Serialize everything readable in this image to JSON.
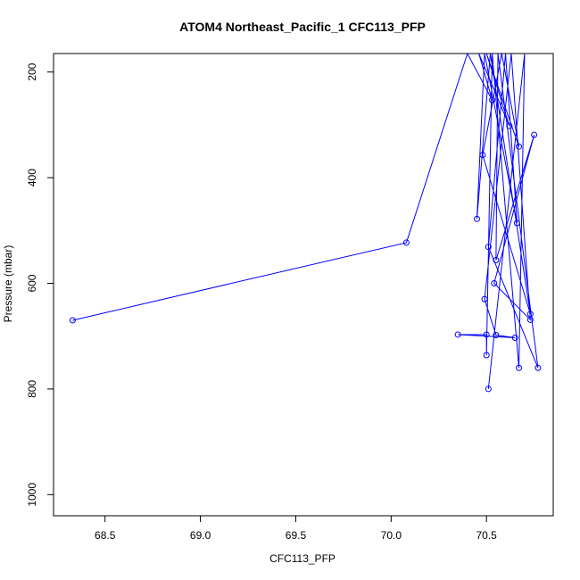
{
  "chart_data": {
    "type": "line",
    "title": "ATOM4 Northeast_Pacific_1 CFC113_PFP",
    "xlabel": "CFC113_PFP",
    "ylabel": "Pressure (mbar)",
    "xlim": [
      68.23,
      70.85
    ],
    "ylim": [
      1040,
      165
    ],
    "y_reversed": true,
    "xticks": [
      "68.5",
      "69.0",
      "69.5",
      "70.0",
      "70.5"
    ],
    "yticks": [
      "200",
      "400",
      "600",
      "800",
      "1000"
    ],
    "grid": false,
    "legend": "none",
    "series": [
      {
        "color": "#0000ff",
        "marker": "open-circle",
        "points": [
          {
            "x": 68.33,
            "y": 670
          },
          {
            "x": 70.08,
            "y": 523
          },
          {
            "x": 70.4,
            "y": 165
          },
          {
            "x": 70.53,
            "y": 253
          },
          {
            "x": 70.46,
            "y": 165
          },
          {
            "x": 70.62,
            "y": 302
          },
          {
            "x": 70.5,
            "y": 165
          },
          {
            "x": 70.67,
            "y": 341
          },
          {
            "x": 70.58,
            "y": 165
          },
          {
            "x": 70.48,
            "y": 357
          },
          {
            "x": 70.73,
            "y": 658
          },
          {
            "x": 70.52,
            "y": 165
          },
          {
            "x": 70.45,
            "y": 478
          },
          {
            "x": 70.49,
            "y": 165
          },
          {
            "x": 70.66,
            "y": 486
          },
          {
            "x": 70.6,
            "y": 165
          },
          {
            "x": 70.51,
            "y": 531
          },
          {
            "x": 70.77,
            "y": 760
          },
          {
            "x": 70.56,
            "y": 165
          },
          {
            "x": 70.55,
            "y": 556
          },
          {
            "x": 70.75,
            "y": 319
          },
          {
            "x": 70.54,
            "y": 600
          },
          {
            "x": 70.73,
            "y": 669
          },
          {
            "x": 70.63,
            "y": 165
          },
          {
            "x": 70.49,
            "y": 630
          },
          {
            "x": 70.55,
            "y": 698
          },
          {
            "x": 70.65,
            "y": 703
          },
          {
            "x": 70.35,
            "y": 697
          },
          {
            "x": 70.5,
            "y": 697
          },
          {
            "x": 70.5,
            "y": 736
          },
          {
            "x": 70.53,
            "y": 165
          },
          {
            "x": 70.67,
            "y": 760
          },
          {
            "x": 70.7,
            "y": 165
          },
          {
            "x": 70.51,
            "y": 800
          }
        ]
      }
    ]
  }
}
